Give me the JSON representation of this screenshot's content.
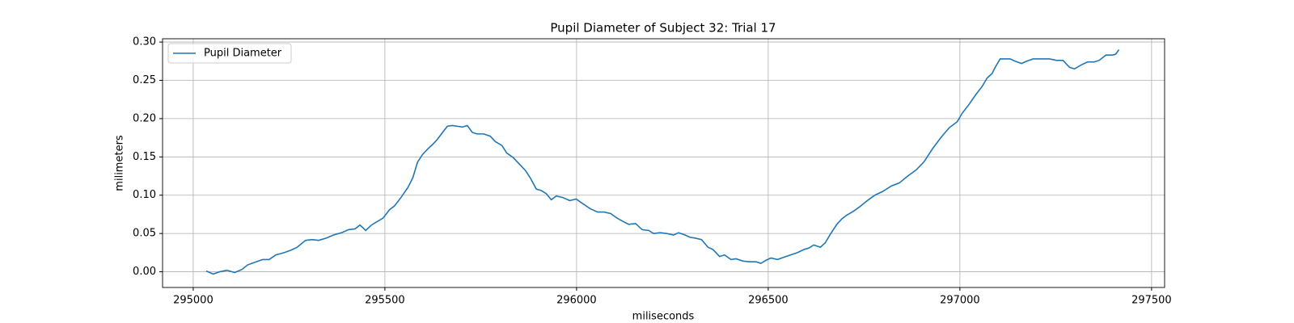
{
  "chart_data": {
    "type": "line",
    "title": "Pupil Diameter of Subject 32: Trial 17",
    "xlabel": "miliseconds",
    "ylabel": "milimeters",
    "x": [
      295034,
      295052,
      295069,
      295088,
      295108,
      295127,
      295142,
      295164,
      295181,
      295198,
      295215,
      295237,
      295254,
      295271,
      295293,
      295310,
      295327,
      295347,
      295366,
      295387,
      295405,
      295422,
      295435,
      295450,
      295465,
      295478,
      295495,
      295512,
      295525,
      295542,
      295560,
      295573,
      295585,
      295598,
      295611,
      295624,
      295637,
      295652,
      295663,
      295676,
      295689,
      295702,
      295715,
      295728,
      295740,
      295758,
      295775,
      295788,
      295805,
      295818,
      295835,
      295852,
      295867,
      295880,
      295895,
      295908,
      295921,
      295934,
      295947,
      295964,
      295982,
      295999,
      296016,
      296037,
      296055,
      296072,
      296089,
      296106,
      296124,
      296136,
      296154,
      296171,
      296188,
      296201,
      296218,
      296235,
      296253,
      296266,
      296283,
      296296,
      296309,
      296326,
      296343,
      296356,
      296373,
      296386,
      296403,
      296416,
      296434,
      296451,
      296468,
      296481,
      296494,
      296507,
      296524,
      296541,
      296558,
      296576,
      296593,
      296606,
      296619,
      296636,
      296649,
      296662,
      296679,
      296692,
      296705,
      296722,
      296739,
      296756,
      296778,
      296799,
      296821,
      296842,
      296864,
      296886,
      296907,
      296929,
      296950,
      296972,
      296993,
      297006,
      297023,
      297041,
      297058,
      297071,
      297084,
      297092,
      297105,
      297118,
      297131,
      297144,
      297161,
      297174,
      297191,
      297209,
      297221,
      297234,
      297252,
      297269,
      297286,
      297299,
      297316,
      297333,
      297350,
      297363,
      297381,
      297398,
      297406,
      297415
    ],
    "series": [
      {
        "name": "Pupil Diameter",
        "color": "#1f77b4",
        "values": [
          0.001,
          -0.003,
          0.0,
          0.002,
          -0.001,
          0.003,
          0.009,
          0.013,
          0.016,
          0.016,
          0.022,
          0.025,
          0.028,
          0.032,
          0.041,
          0.042,
          0.041,
          0.044,
          0.048,
          0.051,
          0.055,
          0.056,
          0.061,
          0.054,
          0.061,
          0.065,
          0.07,
          0.081,
          0.086,
          0.097,
          0.11,
          0.123,
          0.143,
          0.153,
          0.16,
          0.166,
          0.173,
          0.183,
          0.19,
          0.191,
          0.19,
          0.189,
          0.191,
          0.182,
          0.18,
          0.18,
          0.177,
          0.17,
          0.165,
          0.155,
          0.149,
          0.14,
          0.132,
          0.122,
          0.108,
          0.106,
          0.102,
          0.094,
          0.099,
          0.097,
          0.093,
          0.095,
          0.089,
          0.082,
          0.078,
          0.078,
          0.076,
          0.07,
          0.065,
          0.062,
          0.063,
          0.055,
          0.054,
          0.05,
          0.051,
          0.05,
          0.048,
          0.051,
          0.048,
          0.045,
          0.044,
          0.042,
          0.032,
          0.029,
          0.02,
          0.022,
          0.016,
          0.017,
          0.014,
          0.013,
          0.013,
          0.011,
          0.015,
          0.018,
          0.016,
          0.019,
          0.022,
          0.025,
          0.029,
          0.031,
          0.035,
          0.032,
          0.038,
          0.049,
          0.062,
          0.069,
          0.074,
          0.079,
          0.085,
          0.092,
          0.1,
          0.105,
          0.112,
          0.116,
          0.125,
          0.133,
          0.144,
          0.161,
          0.175,
          0.188,
          0.196,
          0.207,
          0.218,
          0.231,
          0.242,
          0.253,
          0.259,
          0.267,
          0.278,
          0.278,
          0.278,
          0.275,
          0.272,
          0.275,
          0.278,
          0.278,
          0.278,
          0.278,
          0.276,
          0.276,
          0.267,
          0.265,
          0.27,
          0.274,
          0.274,
          0.276,
          0.283,
          0.283,
          0.284,
          0.29
        ]
      }
    ],
    "xlim": [
      294920,
      297534
    ],
    "ylim": [
      -0.0205,
      0.3043
    ],
    "xticks": [
      295000,
      295500,
      296000,
      296500,
      297000,
      297500
    ],
    "yticks": [
      {
        "value": 0,
        "label": "0.00"
      },
      0.05,
      {
        "value": 0.1,
        "label": "0.10"
      },
      0.15,
      {
        "value": 0.2,
        "label": "0.20"
      },
      0.25,
      {
        "value": 0.3,
        "label": "0.30"
      }
    ],
    "grid": true,
    "legend": "upper left"
  }
}
